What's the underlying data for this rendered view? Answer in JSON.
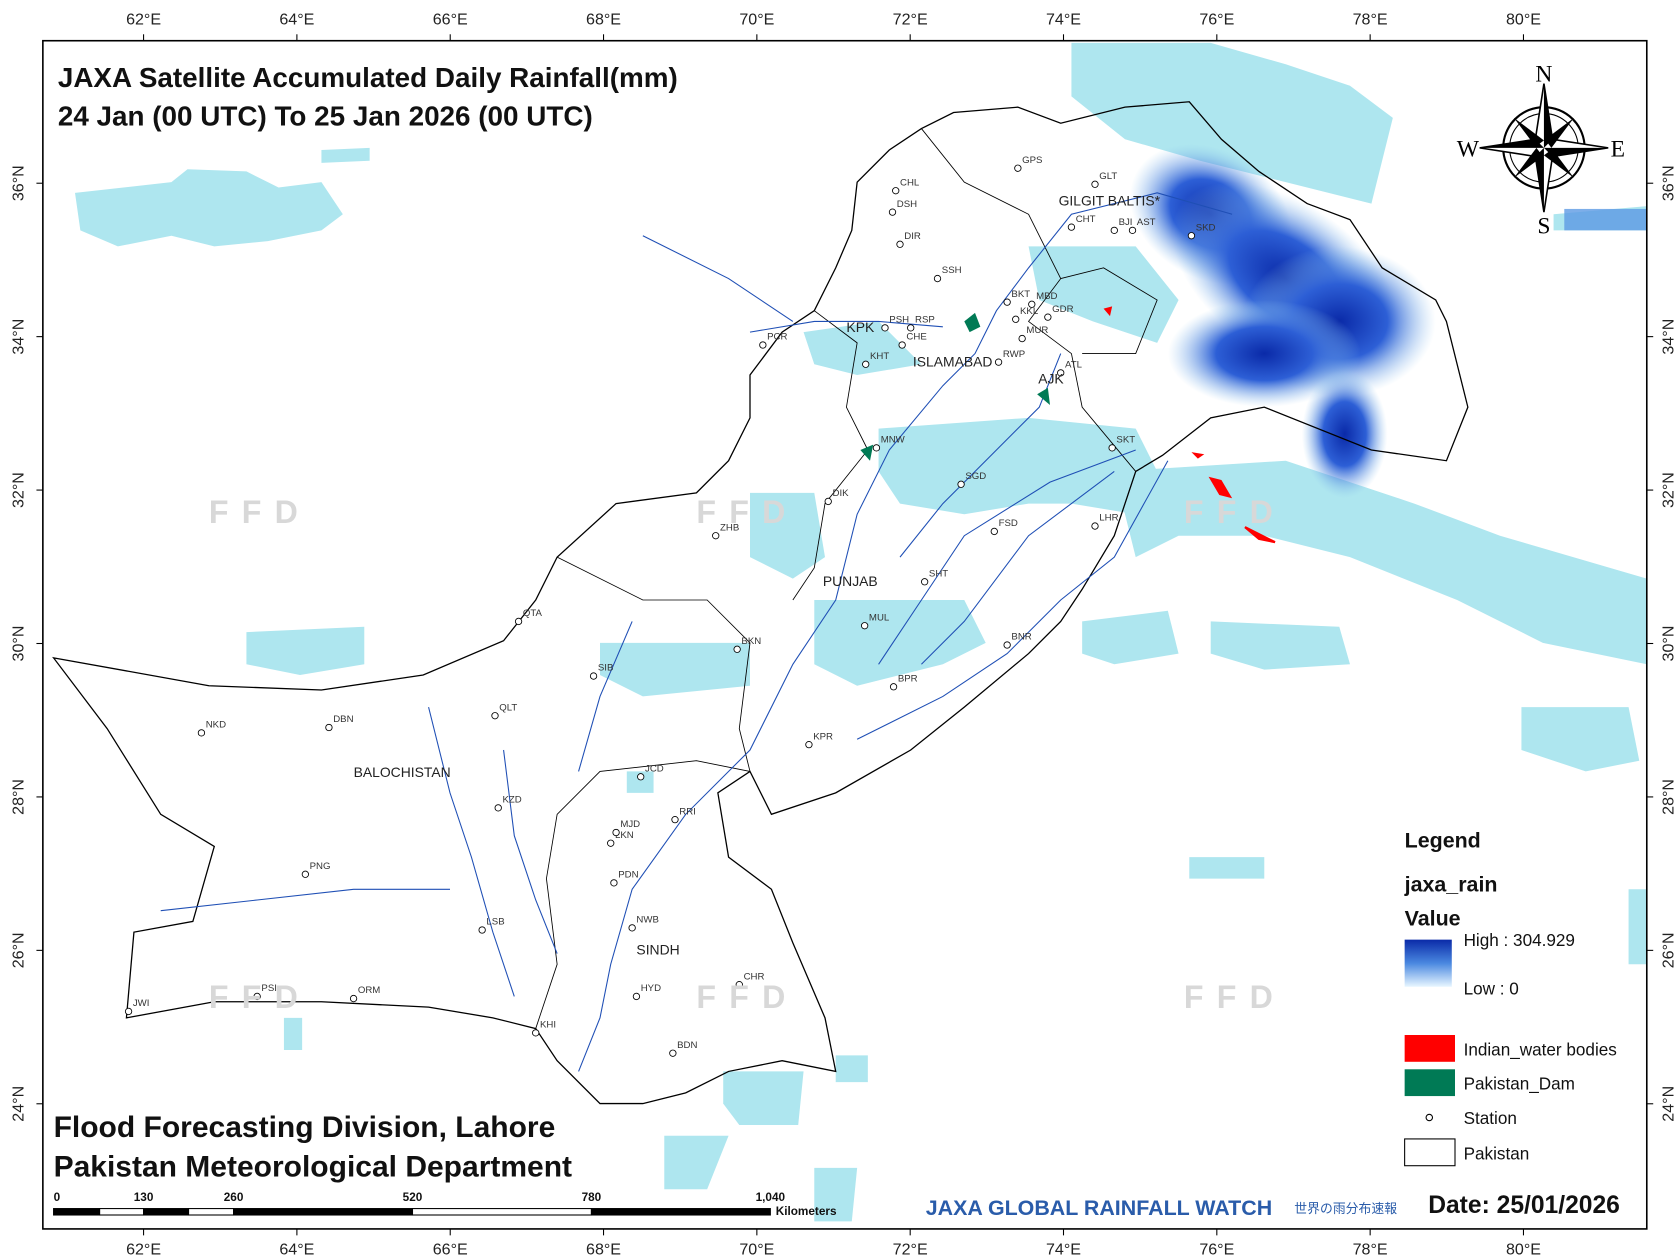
{
  "title": {
    "line1": "JAXA Satellite Accumulated Daily Rainfall(mm)",
    "line2": "24 Jan (00 UTC) To 25 Jan 2026 (00 UTC)"
  },
  "graticule": {
    "longitude": [
      "62°E",
      "64°E",
      "66°E",
      "68°E",
      "70°E",
      "72°E",
      "74°E",
      "76°E",
      "78°E",
      "80°E"
    ],
    "latitude": [
      "36°N",
      "34°N",
      "32°N",
      "30°N",
      "28°N",
      "26°N",
      "24°N"
    ]
  },
  "regions": [
    "GILGIT BALTIS*",
    "KPK",
    "ISLAMABAD",
    "AJK",
    "PUNJAB",
    "BALOCHISTAN",
    "SINDH"
  ],
  "stations": [
    "GPS",
    "GLT",
    "CHL",
    "DSH",
    "CHT",
    "BJI",
    "AST",
    "SKD",
    "DIR",
    "SSH",
    "BKT",
    "MBD",
    "GDR",
    "PSH",
    "RSP",
    "KKL",
    "MUR",
    "CHE",
    "KHT",
    "RWP",
    "PCR",
    "ATL",
    "MNW",
    "SKT",
    "SGD",
    "DIK",
    "ZHB",
    "FSD",
    "LHR",
    "SHT",
    "QTA",
    "MUL",
    "BKN",
    "SIB",
    "BNR",
    "BPR",
    "QLT",
    "DBN",
    "NKD",
    "KPR",
    "JCD",
    "KZD",
    "RRI",
    "LKN",
    "MJD",
    "PDN",
    "PNG",
    "LSB",
    "NWB",
    "CHR",
    "HYD",
    "PSI",
    "ORM",
    "JWI",
    "KHI",
    "BDN"
  ],
  "watermark": "F F D",
  "compass": {
    "n": "N",
    "e": "E",
    "s": "S",
    "w": "W"
  },
  "legend": {
    "title": "Legend",
    "layer": "jaxa_rain",
    "field": "Value",
    "high": "High : 304.929",
    "low": "Low : 0",
    "items": [
      "Indian_water bodies",
      "Pakistan_Dam",
      "Station",
      "Pakistan"
    ]
  },
  "scale_bar": {
    "labels": [
      "0",
      "130",
      "260",
      "520",
      "780",
      "1,040"
    ],
    "unit": "Kilometers"
  },
  "footer": {
    "org1": "Flood Forecasting Division, Lahore",
    "org2": "Pakistan Meteorological Department",
    "brand": "JAXA GLOBAL RAINFALL WATCH",
    "brand_jp": "世界の雨分布速報",
    "date": "Date: 25/01/2026"
  }
}
